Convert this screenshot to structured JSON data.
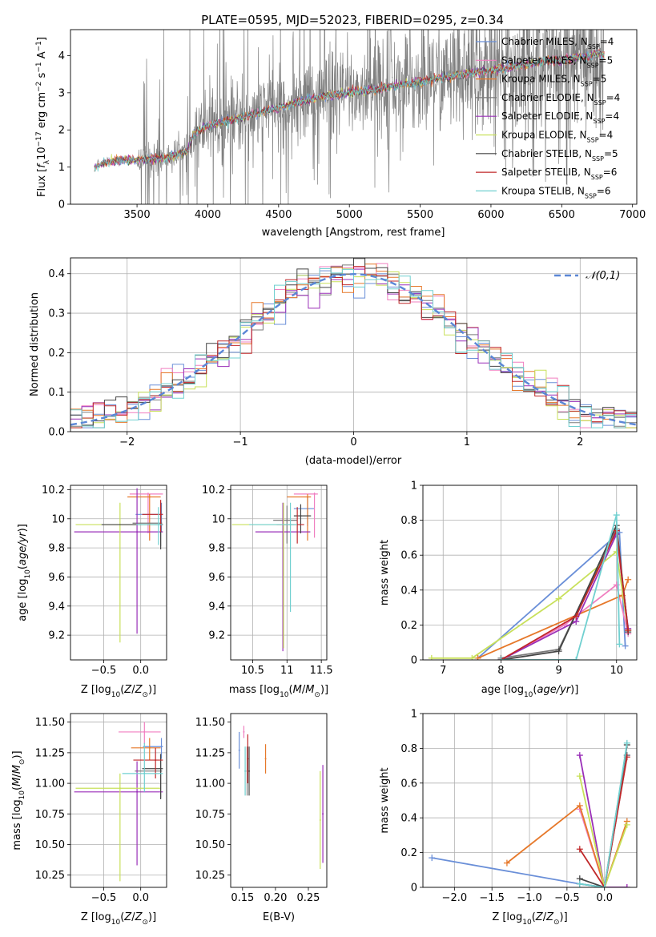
{
  "title": "PLATE=0595, MJD=52023, FIBERID=0295, z=0.34",
  "colors": {
    "Chabrier MILES": "#6a8fd8",
    "Salpeter MILES": "#f07fc0",
    "Kroupa MILES": "#e6782a",
    "Chabrier ELODIE": "#7a7a7a",
    "Salpeter ELODIE": "#9a2fb8",
    "Kroupa ELODIE": "#c8e05a",
    "Chabrier STELIB": "#444444",
    "Salpeter STELIB": "#c0282a",
    "Kroupa STELIB": "#70d0d0"
  },
  "chart_data": [
    {
      "id": "spectrum",
      "type": "line",
      "xlabel": "wavelength [Angstrom, rest frame]",
      "ylabel_parts": [
        "Flux [",
        "f",
        "λ",
        "10",
        "−17",
        " erg cm",
        "−2",
        " s",
        "−1",
        " A",
        "−1",
        "]"
      ],
      "xlim": [
        3030,
        7030
      ],
      "ylim": [
        0,
        4.7
      ],
      "xticks": [
        3500,
        4000,
        4500,
        5000,
        5500,
        6000,
        6500,
        7000
      ],
      "yticks": [
        0,
        1,
        2,
        3,
        4
      ],
      "grid": false,
      "legend_position": "upper-right",
      "series": [
        {
          "name": "Chabrier MILES",
          "nssp": "4"
        },
        {
          "name": "Salpeter MILES",
          "nssp": "5"
        },
        {
          "name": "Kroupa MILES",
          "nssp": "5"
        },
        {
          "name": "Chabrier ELODIE",
          "nssp": "4"
        },
        {
          "name": "Salpeter ELODIE",
          "nssp": "4"
        },
        {
          "name": "Kroupa ELODIE",
          "nssp": "4"
        },
        {
          "name": "Chabrier STELIB",
          "nssp": "5"
        },
        {
          "name": "Salpeter STELIB",
          "nssp": "6"
        },
        {
          "name": "Kroupa STELIB",
          "nssp": "6"
        }
      ],
      "model_trend": {
        "x": [
          3200,
          3250,
          3300,
          3500,
          3700,
          3850,
          3900,
          4000,
          4200,
          4400,
          4600,
          4800,
          5000,
          5200,
          5500,
          5800,
          6000,
          6300,
          6600,
          6800
        ],
        "y": [
          1.0,
          1.1,
          1.15,
          1.2,
          1.25,
          1.4,
          1.9,
          2.1,
          2.3,
          2.5,
          2.7,
          2.9,
          3.0,
          3.1,
          3.3,
          3.5,
          3.6,
          3.8,
          3.95,
          4.05
        ]
      }
    },
    {
      "id": "residuals",
      "type": "line",
      "xlabel": "(data-model)/error",
      "ylabel": "Normed distribution",
      "xlim": [
        -2.5,
        2.5
      ],
      "ylim": [
        0,
        0.44
      ],
      "xticks": [
        -2,
        -1,
        0,
        1,
        2
      ],
      "xtick_labels": [
        "−2",
        "−1",
        "0",
        "1",
        "2"
      ],
      "yticks": [
        0.0,
        0.1,
        0.2,
        0.3,
        0.4
      ],
      "ytick_labels": [
        "0.0",
        "0.1",
        "0.2",
        "0.3",
        "0.4"
      ],
      "grid": true,
      "legend": "𝒩(0,1)",
      "legend_position": "upper-right"
    },
    {
      "id": "age-vs-Z",
      "type": "scatter",
      "xlabel": "Z [log10(Z/Z⊙)]",
      "ylabel": "age [log10(age/yr)]",
      "xlim": [
        -0.95,
        0.35
      ],
      "ylim": [
        9.03,
        10.23
      ],
      "xticks": [
        -0.5,
        0.0
      ],
      "xtick_labels": [
        "−0.5",
        "0.0"
      ],
      "yticks": [
        9.2,
        9.4,
        9.6,
        9.8,
        10.0,
        10.2
      ],
      "grid": true,
      "points": [
        {
          "x": 0.28,
          "y": 10.03,
          "xerr": [
            0.35,
            0.02
          ],
          "yerr": [
            0.12,
            0.08
          ]
        },
        {
          "x": 0.1,
          "y": 10.17,
          "xerr": [
            0.25,
            0.2
          ],
          "yerr": [
            0.27,
            0.01
          ]
        },
        {
          "x": 0.12,
          "y": 10.15,
          "xerr": [
            0.3,
            0.15
          ],
          "yerr": [
            0.3,
            0.02
          ]
        },
        {
          "x": 0.27,
          "y": 9.97,
          "xerr": [
            0.38,
            0.02
          ],
          "yerr": [
            0.16,
            0.12
          ]
        },
        {
          "x": -0.05,
          "y": 9.91,
          "xerr": [
            0.85,
            0.35
          ],
          "yerr": [
            0.7,
            0.3
          ]
        },
        {
          "x": -0.28,
          "y": 9.96,
          "xerr": [
            0.6,
            0.55
          ],
          "yerr": [
            0.81,
            0.15
          ]
        },
        {
          "x": 0.27,
          "y": 9.96,
          "xerr": [
            0.8,
            0.03
          ],
          "yerr": [
            0.17,
            0.15
          ]
        },
        {
          "x": 0.27,
          "y": 10.03,
          "xerr": [
            0.25,
            0.03
          ],
          "yerr": [
            0.12,
            0.1
          ]
        },
        {
          "x": 0.24,
          "y": 9.96,
          "xerr": [
            0.3,
            0.05
          ],
          "yerr": [
            0.14,
            0.12
          ]
        }
      ]
    },
    {
      "id": "age-vs-mass",
      "type": "scatter",
      "xlabel": "mass [log10(M/M⊙)]",
      "xlim": [
        10.18,
        11.58
      ],
      "ylim": [
        9.03,
        10.23
      ],
      "xticks": [
        10.5,
        11.0,
        11.5
      ],
      "yticks": [
        9.2,
        9.4,
        9.6,
        9.8,
        10.0,
        10.2
      ],
      "grid": true,
      "points": [
        {
          "x": 11.3,
          "y": 10.07,
          "xerr": [
            0.2,
            0.1
          ],
          "yerr": [
            0.12,
            0.08
          ]
        },
        {
          "x": 11.4,
          "y": 10.17,
          "xerr": [
            0.3,
            0.05
          ],
          "yerr": [
            0.3,
            0.01
          ]
        },
        {
          "x": 11.3,
          "y": 10.15,
          "xerr": [
            0.3,
            0.05
          ],
          "yerr": [
            0.3,
            0.02
          ]
        },
        {
          "x": 11.0,
          "y": 9.99,
          "xerr": [
            0.2,
            0.15
          ],
          "yerr": [
            0.16,
            0.1
          ]
        },
        {
          "x": 10.94,
          "y": 9.91,
          "xerr": [
            0.4,
            0.4
          ],
          "yerr": [
            0.82,
            0.2
          ]
        },
        {
          "x": 10.95,
          "y": 9.96,
          "xerr": [
            0.75,
            0.15
          ],
          "yerr": [
            0.85,
            0.15
          ]
        },
        {
          "x": 11.2,
          "y": 10.02,
          "xerr": [
            0.1,
            0.15
          ],
          "yerr": [
            0.12,
            0.08
          ]
        },
        {
          "x": 11.15,
          "y": 9.96,
          "xerr": [
            0.3,
            0.1
          ],
          "yerr": [
            0.13,
            0.12
          ]
        },
        {
          "x": 11.05,
          "y": 9.96,
          "xerr": [
            0.6,
            0.1
          ],
          "yerr": [
            0.6,
            0.15
          ]
        }
      ]
    },
    {
      "id": "weight-vs-age",
      "type": "line",
      "xlabel": "age [log10(age/yr)]",
      "ylabel": "mass weight",
      "xlim": [
        6.65,
        10.35
      ],
      "ylim": [
        0,
        1.0
      ],
      "xticks": [
        7,
        8,
        9,
        10
      ],
      "yticks": [
        0.0,
        0.2,
        0.4,
        0.6,
        0.8,
        1.0
      ],
      "grid": true,
      "series": [
        {
          "name": "Chabrier MILES",
          "x": [
            7.6,
            10.05,
            10.15
          ],
          "y": [
            0.01,
            0.73,
            0.08
          ]
        },
        {
          "name": "Salpeter MILES",
          "x": [
            8.0,
            9.1,
            10.0,
            10.2
          ],
          "y": [
            0.0,
            0.2,
            0.43,
            0.15
          ]
        },
        {
          "name": "Kroupa MILES",
          "x": [
            7.6,
            10.1,
            10.2
          ],
          "y": [
            0.01,
            0.37,
            0.46
          ]
        },
        {
          "name": "Chabrier ELODIE",
          "x": [
            8.0,
            9.0,
            10.0,
            10.2
          ],
          "y": [
            0.01,
            0.06,
            0.75,
            0.17
          ]
        },
        {
          "name": "Salpeter ELODIE",
          "x": [
            8.0,
            9.3,
            10.0,
            10.2
          ],
          "y": [
            0.0,
            0.22,
            0.72,
            0.18
          ]
        },
        {
          "name": "Kroupa ELODIE",
          "x": [
            6.8,
            7.5,
            9.0,
            10.0,
            10.2
          ],
          "y": [
            0.01,
            0.01,
            0.35,
            0.62,
            0.17
          ]
        },
        {
          "name": "Chabrier STELIB",
          "x": [
            8.0,
            9.0,
            10.0,
            10.2
          ],
          "y": [
            0.0,
            0.05,
            0.77,
            0.16
          ]
        },
        {
          "name": "Salpeter STELIB",
          "x": [
            8.0,
            9.3,
            10.0,
            10.2
          ],
          "y": [
            0.0,
            0.25,
            0.74,
            0.17
          ]
        },
        {
          "name": "Kroupa STELIB",
          "x": [
            8.0,
            9.3,
            10.0,
            10.05
          ],
          "y": [
            0.0,
            0.0,
            0.83,
            0.09
          ]
        }
      ]
    },
    {
      "id": "mass-vs-Z",
      "type": "scatter",
      "xlabel": "Z [log10(Z/Z⊙)]",
      "ylabel": "mass [log10(M/M⊙)]",
      "xlim": [
        -0.95,
        0.35
      ],
      "ylim": [
        10.15,
        11.57
      ],
      "xticks": [
        -0.5,
        0.0
      ],
      "xtick_labels": [
        "−0.5",
        "0.0"
      ],
      "yticks": [
        10.25,
        10.5,
        10.75,
        11.0,
        11.25,
        11.5
      ],
      "ytick_labels": [
        "10.25",
        "10.50",
        "10.75",
        "11.00",
        "11.25",
        "11.50"
      ],
      "grid": true,
      "points": [
        {
          "x": 0.28,
          "y": 11.3,
          "xerr": [
            0.25,
            0.02
          ],
          "yerr": [
            0.1,
            0.07
          ]
        },
        {
          "x": 0.05,
          "y": 11.42,
          "xerr": [
            0.35,
            0.22
          ],
          "yerr": [
            0.1,
            0.08
          ]
        },
        {
          "x": 0.12,
          "y": 11.29,
          "xerr": [
            0.25,
            0.15
          ],
          "yerr": [
            0.1,
            0.08
          ]
        },
        {
          "x": 0.27,
          "y": 11.1,
          "xerr": [
            0.35,
            0.02
          ],
          "yerr": [
            0.22,
            0.1
          ]
        },
        {
          "x": -0.05,
          "y": 10.93,
          "xerr": [
            0.85,
            0.35
          ],
          "yerr": [
            0.6,
            0.25
          ]
        },
        {
          "x": -0.28,
          "y": 10.96,
          "xerr": [
            0.6,
            0.55
          ],
          "yerr": [
            0.76,
            0.12
          ]
        },
        {
          "x": 0.27,
          "y": 11.12,
          "xerr": [
            0.25,
            0.03
          ],
          "yerr": [
            0.25,
            0.12
          ]
        },
        {
          "x": 0.2,
          "y": 11.19,
          "xerr": [
            0.3,
            0.1
          ],
          "yerr": [
            0.15,
            0.1
          ]
        },
        {
          "x": 0.05,
          "y": 11.08,
          "xerr": [
            0.3,
            0.25
          ],
          "yerr": [
            0.15,
            0.25
          ]
        }
      ]
    },
    {
      "id": "mass-vs-ebv",
      "type": "scatter",
      "xlabel": "E(B-V)",
      "xlim": [
        0.132,
        0.278
      ],
      "ylim": [
        10.15,
        11.57
      ],
      "xticks": [
        0.15,
        0.2,
        0.25
      ],
      "xtick_labels": [
        "0.15",
        "0.20",
        "0.25"
      ],
      "yticks": [
        10.25,
        10.5,
        10.75,
        11.0,
        11.25,
        11.5
      ],
      "ytick_labels": [
        "10.25",
        "10.50",
        "10.75",
        "11.00",
        "11.25",
        "11.50"
      ],
      "grid": false,
      "points": [
        {
          "x": 0.145,
          "y": 11.27,
          "yerr": [
            0.15,
            0.15
          ]
        },
        {
          "x": 0.152,
          "y": 11.42,
          "yerr": [
            0.05,
            0.05
          ]
        },
        {
          "x": 0.185,
          "y": 11.2,
          "yerr": [
            0.12,
            0.12
          ]
        },
        {
          "x": 0.157,
          "y": 11.1,
          "yerr": [
            0.2,
            0.2
          ]
        },
        {
          "x": 0.272,
          "y": 10.75,
          "yerr": [
            0.4,
            0.4
          ]
        },
        {
          "x": 0.268,
          "y": 10.7,
          "yerr": [
            0.4,
            0.4
          ]
        },
        {
          "x": 0.16,
          "y": 11.1,
          "yerr": [
            0.2,
            0.2
          ]
        },
        {
          "x": 0.158,
          "y": 11.2,
          "yerr": [
            0.2,
            0.2
          ]
        },
        {
          "x": 0.154,
          "y": 11.1,
          "yerr": [
            0.2,
            0.2
          ]
        }
      ]
    },
    {
      "id": "weight-vs-Z",
      "type": "line",
      "xlabel": "Z [log10(Z/Z⊙)]",
      "ylabel": "mass weight",
      "xlim": [
        -2.42,
        0.43
      ],
      "ylim": [
        0,
        1.0
      ],
      "xticks": [
        -2.0,
        -1.5,
        -1.0,
        -0.5,
        0.0
      ],
      "xtick_labels": [
        "−2.0",
        "−1.5",
        "−1.0",
        "−0.5",
        "0.0"
      ],
      "yticks": [
        0.0,
        0.2,
        0.4,
        0.6,
        0.8,
        1.0
      ],
      "grid": true,
      "series": [
        {
          "name": "Chabrier MILES",
          "x": [
            -2.3,
            -0.33,
            0.0,
            0.3
          ],
          "y": [
            0.17,
            0.02,
            0.0,
            0.76
          ]
        },
        {
          "name": "Salpeter MILES",
          "x": [
            -0.33,
            0.0,
            0.3
          ],
          "y": [
            0.45,
            0.0,
            0.0
          ]
        },
        {
          "name": "Kroupa MILES",
          "x": [
            -1.3,
            -0.33,
            0.0,
            0.3
          ],
          "y": [
            0.14,
            0.47,
            0.0,
            0.38
          ]
        },
        {
          "name": "Chabrier ELODIE",
          "x": [
            -0.33,
            0.0,
            0.3
          ],
          "y": [
            0.02,
            0.0,
            0.76
          ]
        },
        {
          "name": "Salpeter ELODIE",
          "x": [
            -0.33,
            0.0,
            0.3
          ],
          "y": [
            0.76,
            0.0,
            0.0
          ]
        },
        {
          "name": "Kroupa ELODIE",
          "x": [
            -0.33,
            0.0,
            0.3
          ],
          "y": [
            0.64,
            0.0,
            0.36
          ]
        },
        {
          "name": "Chabrier STELIB",
          "x": [
            -0.33,
            0.0,
            0.3
          ],
          "y": [
            0.05,
            0.0,
            0.82
          ]
        },
        {
          "name": "Salpeter STELIB",
          "x": [
            -0.33,
            0.0,
            0.3
          ],
          "y": [
            0.22,
            0.0,
            0.75
          ]
        },
        {
          "name": "Kroupa STELIB",
          "x": [
            -0.33,
            0.0,
            0.3
          ],
          "y": [
            0.02,
            0.0,
            0.83
          ]
        }
      ]
    }
  ]
}
